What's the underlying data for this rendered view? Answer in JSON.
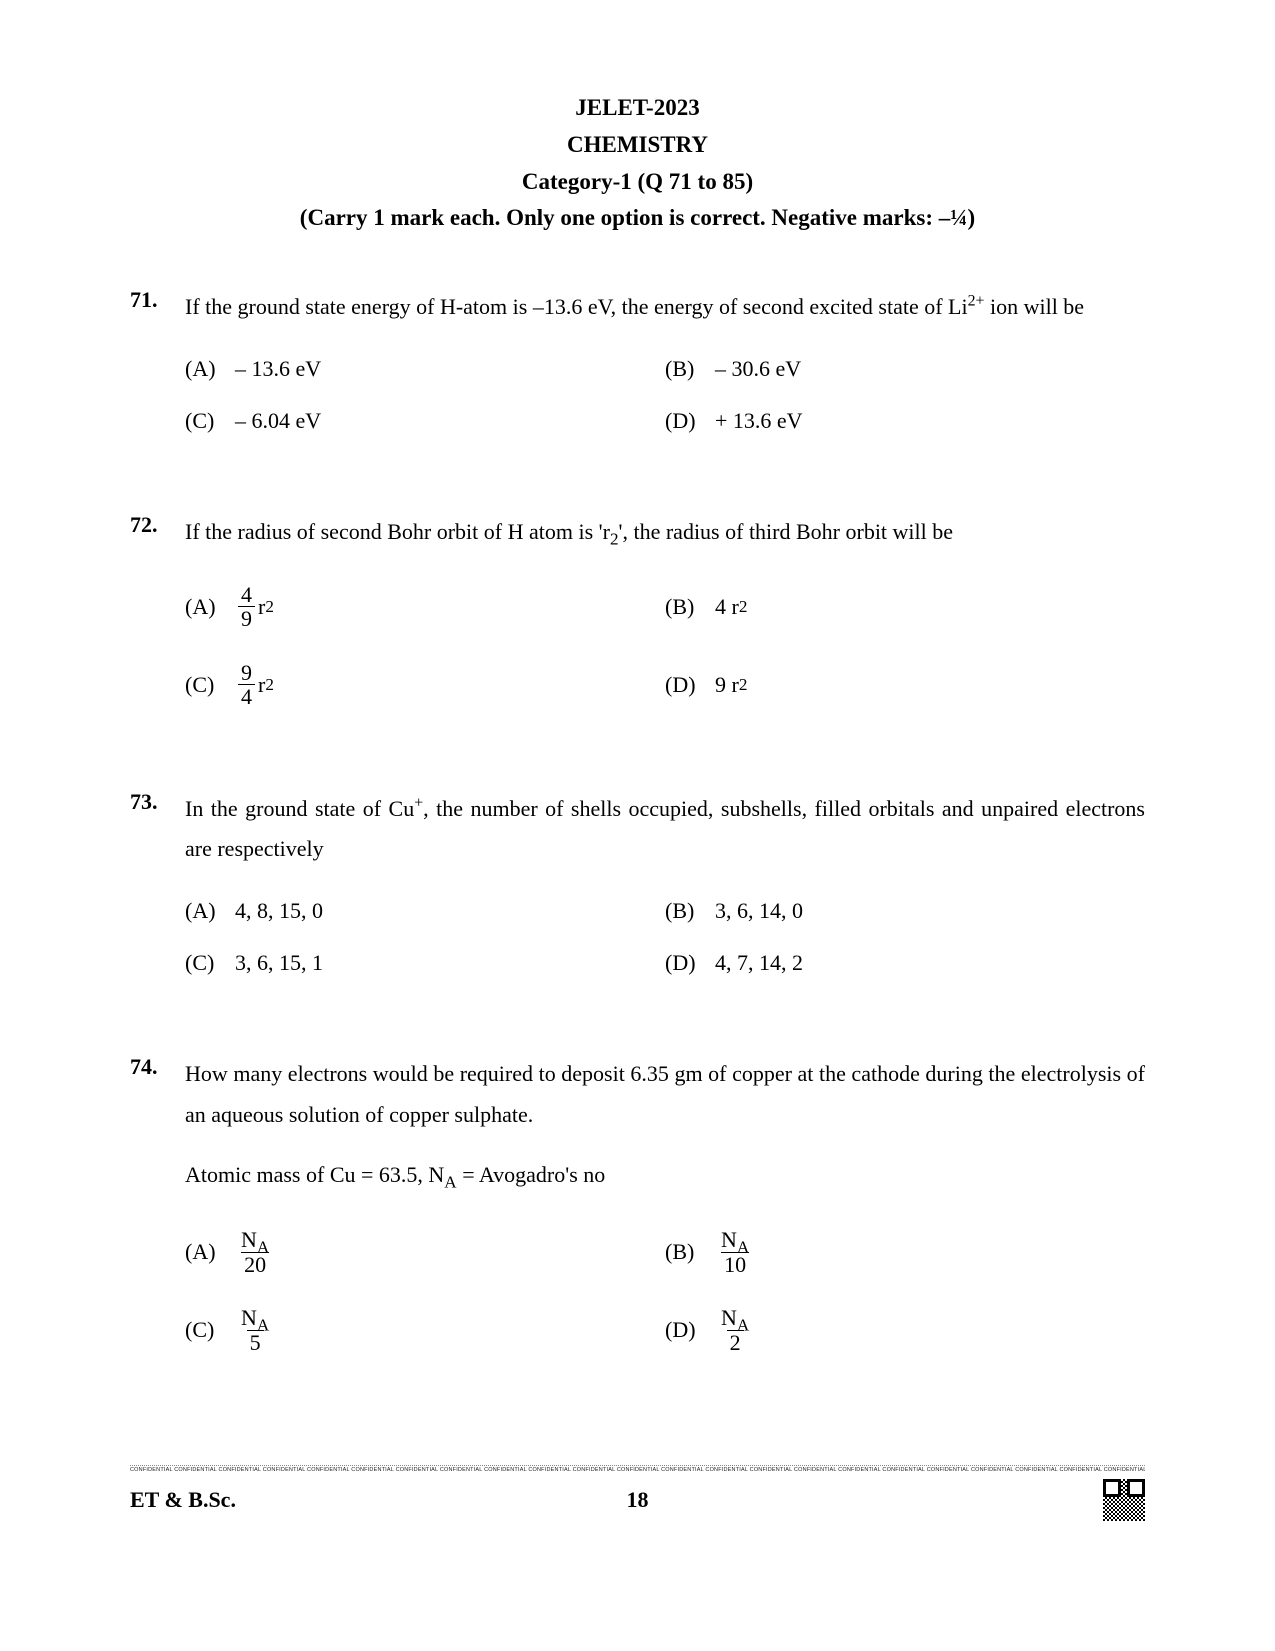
{
  "header": {
    "exam": "JELET-2023",
    "subject": "CHEMISTRY",
    "category": "Category-1 (Q 71 to 85)",
    "instructions": "(Carry 1 mark each. Only one option is correct. Negative marks:  –¼)"
  },
  "questions": [
    {
      "num": "71.",
      "text_html": "If the ground state energy of H-atom is –13.6 eV, the energy of second excited state of Li<sup>2+</sup> ion will be",
      "justify": true,
      "tall": false,
      "options": [
        {
          "label": "(A)",
          "html": "– 13.6 eV"
        },
        {
          "label": "(B)",
          "html": "– 30.6 eV"
        },
        {
          "label": "(C)",
          "html": "– 6.04 eV"
        },
        {
          "label": "(D)",
          "html": "+ 13.6 eV"
        }
      ]
    },
    {
      "num": "72.",
      "text_html": "If the radius of second Bohr orbit of H atom is 'r<sub>2</sub>', the radius of third Bohr orbit will be",
      "justify": false,
      "tall": true,
      "options": [
        {
          "label": "(A)",
          "html": "<span class=\"frac\"><span class=\"num\">4</span><span class=\"den\">9</span></span> r<sub>2</sub>"
        },
        {
          "label": "(B)",
          "html": "4 r<sub>2</sub>"
        },
        {
          "label": "(C)",
          "html": "<span class=\"frac\"><span class=\"num\">9</span><span class=\"den\">4</span></span> r<sub>2</sub>"
        },
        {
          "label": "(D)",
          "html": "9 r<sub>2</sub>"
        }
      ]
    },
    {
      "num": "73.",
      "text_html": "In the ground state of Cu<sup>+</sup>, the number of shells occupied, subshells, filled orbitals and unpaired electrons are respectively",
      "justify": true,
      "tall": false,
      "options": [
        {
          "label": "(A)",
          "html": "4, 8, 15, 0"
        },
        {
          "label": "(B)",
          "html": "3, 6, 14, 0"
        },
        {
          "label": "(C)",
          "html": "3, 6, 15, 1"
        },
        {
          "label": "(D)",
          "html": "4, 7, 14, 2"
        }
      ]
    },
    {
      "num": "74.",
      "text_html": "How many electrons would be required to deposit 6.35 gm of copper at the cathode during the electrolysis of an aqueous solution of copper sulphate.",
      "subtext_html": "Atomic mass of Cu = 63.5, N<sub>A</sub> = Avogadro's no",
      "justify": true,
      "tall": true,
      "options": [
        {
          "label": "(A)",
          "html": "<span class=\"frac\"><span class=\"num\">N<sub>A</sub></span><span class=\"den\">20</span></span>"
        },
        {
          "label": "(B)",
          "html": "<span class=\"frac\"><span class=\"num\">N<sub>A</sub></span><span class=\"den\">10</span></span>"
        },
        {
          "label": "(C)",
          "html": "<span class=\"frac\"><span class=\"num\">N<sub>A</sub></span><span class=\"den\">5</span></span>"
        },
        {
          "label": "(D)",
          "html": "<span class=\"frac\"><span class=\"num\">N<sub>A</sub></span><span class=\"den\">2</span></span>"
        }
      ]
    }
  ],
  "footer": {
    "confidential": "CONFIDENTIAL CONFIDENTIAL CONFIDENTIAL CONFIDENTIAL CONFIDENTIAL CONFIDENTIAL CONFIDENTIAL CONFIDENTIAL CONFIDENTIAL CONFIDENTIAL CONFIDENTIAL CONFIDENTIAL CONFIDENTIAL CONFIDENTIAL CONFIDENTIAL CONFIDENTIAL CONFIDENTIAL CONFIDENTIAL CONFIDENTIAL CONFIDENTIAL CONFIDENTIAL CONFIDENTIAL CONFIDENTIAL CONFIDENTIAL CONFIDENTIAL CONFIDENTIAL CONFIDENTIAL CONFIDENTIAL CONFIDENTIAL CONFIDENTIAL",
    "left": "ET & B.Sc.",
    "page": "18"
  },
  "colors": {
    "background": "#ffffff",
    "text": "#000000"
  },
  "fonts": {
    "body_family": "Times New Roman",
    "body_size_pt": 16,
    "header_size_pt": 17
  }
}
